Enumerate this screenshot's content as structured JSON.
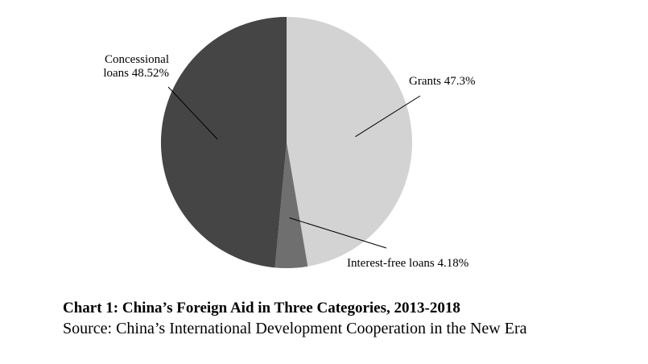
{
  "chart_data": {
    "type": "pie",
    "slices": [
      {
        "label_lines": [
          "Grants 47.3%"
        ],
        "value": 47.3,
        "color": "#d3d3d3"
      },
      {
        "label_lines": [
          "Interest-free loans 4.18%"
        ],
        "value": 4.18,
        "color": "#6f6f6f"
      },
      {
        "label_lines": [
          "Concessional",
          "loans 48.52%"
        ],
        "value": 48.52,
        "color": "#454545"
      }
    ]
  },
  "caption": {
    "title": "Chart 1: China’s Foreign Aid in Three Categories, 2013-2018",
    "source": "Source: China’s International Development Cooperation in the New Era"
  }
}
